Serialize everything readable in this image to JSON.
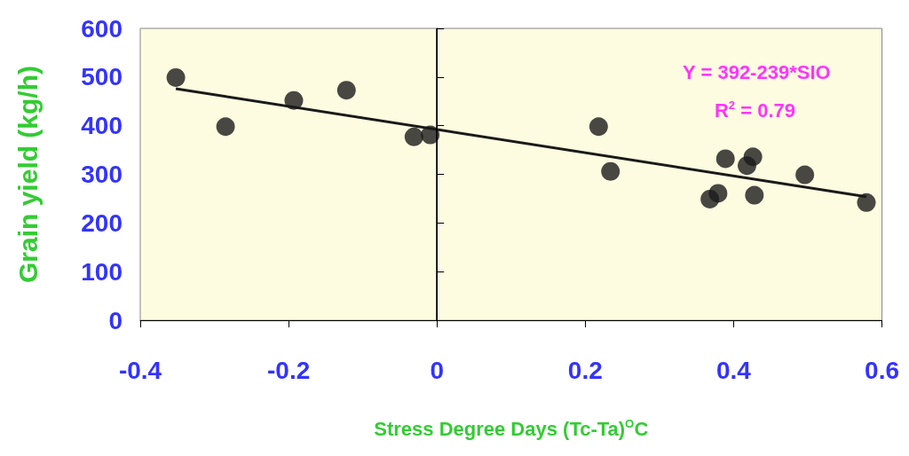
{
  "chart_data": {
    "type": "scatter",
    "xlabel": "Stress Degree Days (Tc-Ta)$^{O}$C",
    "ylabel": "Grain yield (kg/h)",
    "annotations": [
      "Y = 392-239*SIO",
      "R$^{2}$ = 0.79"
    ],
    "series": [
      {
        "color": "#1a1a1a",
        "marker": "circle",
        "x": [
          -0.352,
          -0.285,
          -0.193,
          -0.122,
          -0.031,
          -0.009,
          0.218,
          0.234,
          0.389,
          0.418,
          0.426,
          0.428,
          0.379,
          0.368,
          0.496,
          0.579
        ],
        "values": [
          499,
          398,
          452,
          473,
          377,
          381,
          398,
          306,
          332,
          318,
          336,
          257,
          261,
          249,
          299,
          242
        ]
      },
      {
        "type": "line",
        "color": "#1a1a1a",
        "marker": "none",
        "x": [
          -0.352,
          0.579
        ],
        "values": [
          476,
          254
        ]
      }
    ],
    "xlim": [
      -0.4,
      0.6
    ],
    "xticks": [
      -0.4,
      -0.2,
      0,
      0.2,
      0.4,
      0.6
    ],
    "ylim": [
      0,
      600
    ],
    "yticks": [
      0,
      100,
      200,
      300,
      400,
      500,
      600
    ],
    "ref_lines": [
      {
        "axis": "x",
        "value": 0,
        "color": "#000000"
      }
    ],
    "grid": false
  }
}
